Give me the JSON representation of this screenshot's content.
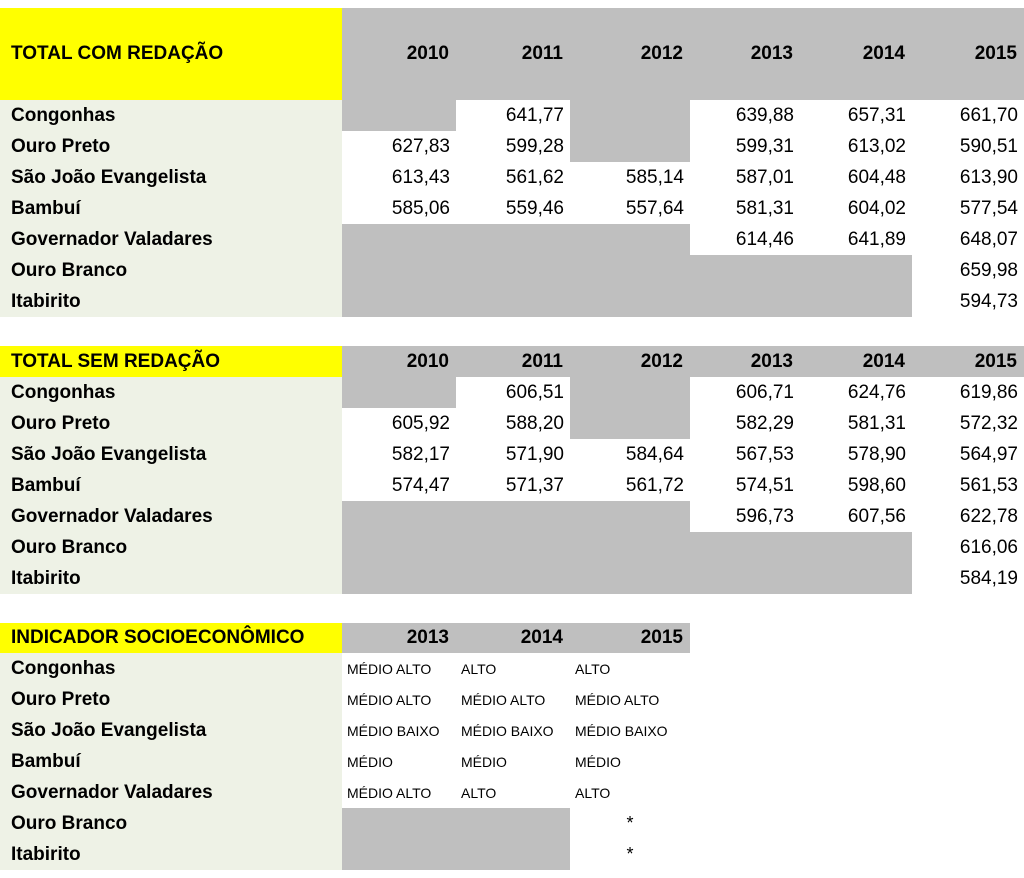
{
  "table_com_redacao": {
    "title": "TOTAL COM REDAÇÃO",
    "years": [
      "2010",
      "2011",
      "2012",
      "2013",
      "2014",
      "2015"
    ],
    "rows": [
      {
        "name": "Congonhas",
        "values": [
          "",
          "641,77",
          "",
          "639,88",
          "657,31",
          "661,70"
        ]
      },
      {
        "name": "Ouro Preto",
        "values": [
          "627,83",
          "599,28",
          "",
          "599,31",
          "613,02",
          "590,51"
        ]
      },
      {
        "name": "São João Evangelista",
        "values": [
          "613,43",
          "561,62",
          "585,14",
          "587,01",
          "604,48",
          "613,90"
        ]
      },
      {
        "name": "Bambuí",
        "values": [
          "585,06",
          "559,46",
          "557,64",
          "581,31",
          "604,02",
          "577,54"
        ]
      },
      {
        "name": "Governador Valadares",
        "values": [
          "",
          "",
          "",
          "614,46",
          "641,89",
          "648,07"
        ]
      },
      {
        "name": "Ouro Branco",
        "values": [
          "",
          "",
          "",
          "",
          "",
          "659,98"
        ]
      },
      {
        "name": "Itabirito",
        "values": [
          "",
          "",
          "",
          "",
          "",
          "594,73"
        ]
      }
    ]
  },
  "table_sem_redacao": {
    "title": "TOTAL SEM REDAÇÃO",
    "years": [
      "2010",
      "2011",
      "2012",
      "2013",
      "2014",
      "2015"
    ],
    "rows": [
      {
        "name": "Congonhas",
        "values": [
          "",
          "606,51",
          "",
          "606,71",
          "624,76",
          "619,86"
        ]
      },
      {
        "name": "Ouro Preto",
        "values": [
          "605,92",
          "588,20",
          "",
          "582,29",
          "581,31",
          "572,32"
        ]
      },
      {
        "name": "São João Evangelista",
        "values": [
          "582,17",
          "571,90",
          "584,64",
          "567,53",
          "578,90",
          "564,97"
        ]
      },
      {
        "name": "Bambuí",
        "values": [
          "574,47",
          "571,37",
          "561,72",
          "574,51",
          "598,60",
          "561,53"
        ]
      },
      {
        "name": "Governador Valadares",
        "values": [
          "",
          "",
          "",
          "596,73",
          "607,56",
          "622,78"
        ]
      },
      {
        "name": "Ouro Branco",
        "values": [
          "",
          "",
          "",
          "",
          "",
          "616,06"
        ]
      },
      {
        "name": "Itabirito",
        "values": [
          "",
          "",
          "",
          "",
          "",
          "584,19"
        ]
      }
    ]
  },
  "table_indicador": {
    "title": "INDICADOR SOCIOECONÔMICO",
    "years": [
      "2013",
      "2014",
      "2015"
    ],
    "rows": [
      {
        "name": "Congonhas",
        "values": [
          "MÉDIO ALTO",
          "ALTO",
          "ALTO"
        ]
      },
      {
        "name": "Ouro Preto",
        "values": [
          "MÉDIO ALTO",
          "MÉDIO ALTO",
          "MÉDIO ALTO"
        ]
      },
      {
        "name": "São João Evangelista",
        "values": [
          "MÉDIO BAIXO",
          "MÉDIO BAIXO",
          "MÉDIO BAIXO"
        ]
      },
      {
        "name": "Bambuí",
        "values": [
          "MÉDIO",
          "MÉDIO",
          "MÉDIO"
        ]
      },
      {
        "name": "Governador Valadares",
        "values": [
          "MÉDIO ALTO",
          "ALTO",
          "ALTO"
        ]
      },
      {
        "name": "Ouro Branco",
        "values": [
          "",
          "",
          "*"
        ]
      },
      {
        "name": "Itabirito",
        "values": [
          "",
          "",
          "*"
        ]
      }
    ]
  },
  "colors": {
    "header_title": "#ffff00",
    "header_year": "#bfbfbf",
    "label_bg": "#eef2e6",
    "empty_cell": "#bfbfbf"
  }
}
